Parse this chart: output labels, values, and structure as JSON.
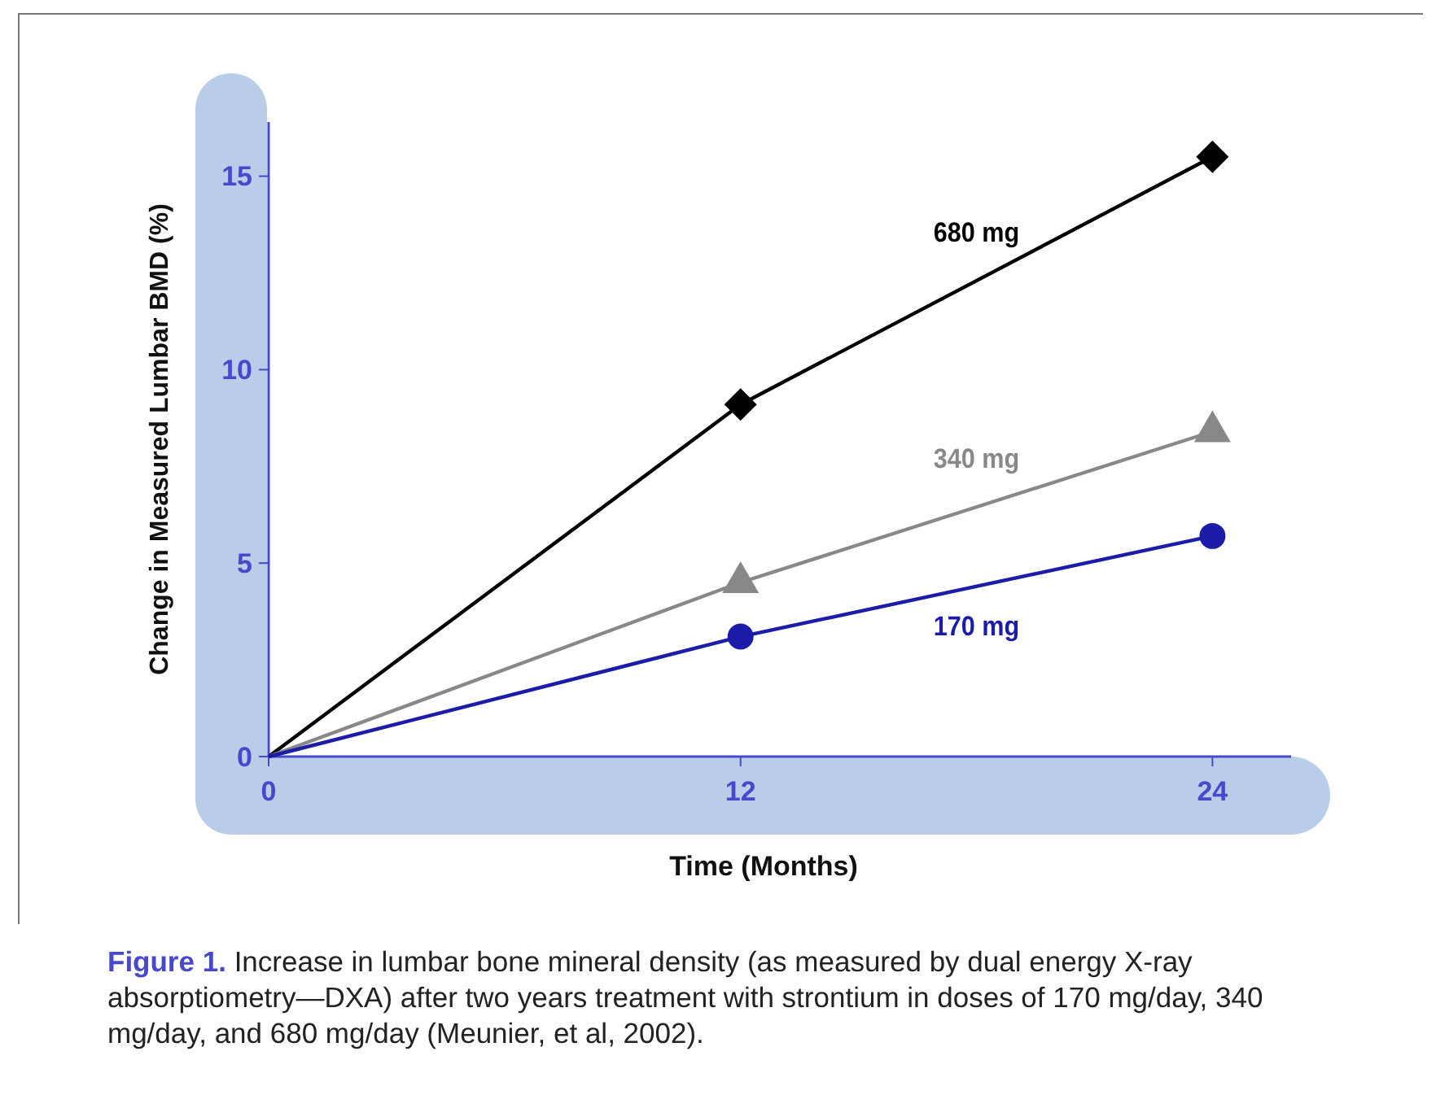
{
  "chart_data": {
    "type": "line",
    "title": "Figure 1.",
    "xlabel": "Time (Months)",
    "ylabel": "Change in Measured Lumbar BMD (%)",
    "annotations": [
      "Increase in lumbar bone mineral density (as measured by dual energy X-ray absorptiometry—DXA) after two years treatment with strontium in doses of 170 mg/day, 340 mg/day, and 680 mg/day (Meunier, et al, 2002)."
    ],
    "x": [
      0,
      12,
      24
    ],
    "xlim": [
      0,
      26
    ],
    "xticks": [
      0,
      12,
      24
    ],
    "ylim": [
      0,
      16.4
    ],
    "yticks": [
      0,
      5,
      10,
      15
    ],
    "grid": false,
    "legend": false,
    "line_style": "solid",
    "series": [
      {
        "name": "680 mg",
        "color": "#000000",
        "marker": "diamond",
        "values": [
          0,
          9.1,
          15.5
        ]
      },
      {
        "name": "340 mg",
        "color": "#888888",
        "marker": "triangle",
        "values": [
          0,
          4.5,
          8.4
        ]
      },
      {
        "name": "170 mg",
        "color": "#1c1ca8",
        "marker": "circle",
        "values": [
          0,
          3.1,
          5.7
        ]
      }
    ]
  }
}
